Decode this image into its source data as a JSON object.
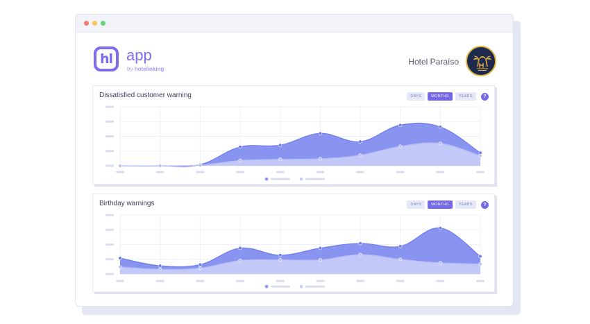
{
  "window": {
    "controls": [
      {
        "name": "close",
        "color": "#f47a72"
      },
      {
        "name": "minimize",
        "color": "#f7c35d"
      },
      {
        "name": "maximize",
        "color": "#64d47c"
      }
    ]
  },
  "header": {
    "logo_mark": "hl",
    "app_name": "app",
    "by_text": "by",
    "brand": "hotelinking",
    "hotel_name": "Hotel Paraíso"
  },
  "colors": {
    "primary": "#7568e8",
    "series_dark": "#7f8bf0",
    "series_light": "#c5cbf8"
  },
  "period_options": [
    "DAYS",
    "MONTHS",
    "YEARS"
  ],
  "active_period": "MONTHS",
  "help_label": "?",
  "charts": [
    {
      "title": "Dissatisfied customer warning",
      "chart_data": {
        "type": "area",
        "title": "Dissatisfied customer warning",
        "categories_count": 10,
        "ylim": [
          0,
          100
        ],
        "series": [
          {
            "values": [
              0,
              0,
              2,
              32,
              35,
              55,
              41,
              69,
              66,
              22
            ]
          },
          {
            "values": [
              0,
              0,
              1,
              9,
              11,
              12,
              18,
              33,
              38,
              17
            ]
          }
        ],
        "grid": true,
        "legend_position": "bottom-center"
      }
    },
    {
      "title": "Birthday warnings",
      "chart_data": {
        "type": "area",
        "title": "Birthday warnings",
        "categories_count": 10,
        "ylim": [
          0,
          100
        ],
        "series": [
          {
            "values": [
              27,
              14,
              16,
              44,
              32,
              44,
              52,
              47,
              78,
              30
            ]
          },
          {
            "values": [
              12,
              8,
              10,
              23,
              24,
              24,
              33,
              25,
              19,
              17
            ]
          }
        ],
        "grid": true,
        "legend_position": "bottom-center"
      }
    }
  ]
}
